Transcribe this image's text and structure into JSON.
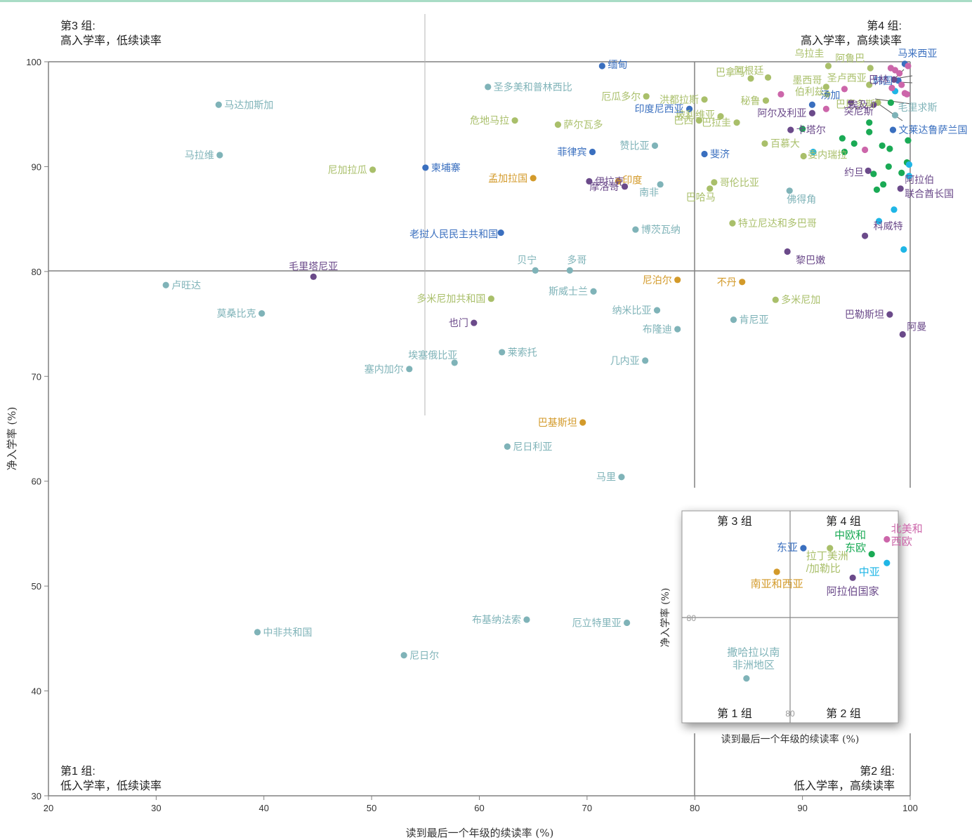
{
  "chart_data": {
    "type": "scatter",
    "xlabel": "读到最后一个年级的续读率 (%)",
    "ylabel": "净入学率 (%)",
    "xlim": [
      20,
      100
    ],
    "ylim": [
      30,
      100
    ],
    "xticks": [
      20,
      30,
      40,
      50,
      60,
      70,
      80,
      90,
      100
    ],
    "yticks": [
      30,
      40,
      50,
      60,
      70,
      80,
      90,
      100
    ],
    "quadrants": [
      {
        "group": "第3 组:",
        "desc": "高入学率，低续读率"
      },
      {
        "group": "第4 组:",
        "desc": "高入学率，高续读率"
      },
      {
        "group": "第1 组:",
        "desc": "低入学率，低续读率"
      },
      {
        "group": "第2 组:",
        "desc": "低入学率，高续读率"
      }
    ],
    "colors": {
      "SSA": "#7fb3b8",
      "LAC": "#a9bf6a",
      "EA": "#3a6fbf",
      "SWA": "#d39a2a",
      "AS": "#6b4a8a",
      "CEE": "#1aaa55",
      "CA": "#1fb6e6",
      "NAWE": "#cc66aa"
    },
    "inset": {
      "groups": [
        "第 3 组",
        "第 4 组",
        "第 1 组",
        "第 2 组"
      ],
      "tick": "80",
      "xlabel": "读到最后一个年级的续读率 (%)",
      "ylabel": "净入学率 (%)",
      "regions": [
        {
          "name": "东亚",
          "key": "EA",
          "x": 88,
          "y": 94
        },
        {
          "name": "拉丁美洲\n/加勒比",
          "key": "LAC",
          "x": 91.5,
          "y": 94
        },
        {
          "name": "中欧和\n东欧",
          "key": "CEE",
          "x": 97,
          "y": 93
        },
        {
          "name": "北美和\n西欧",
          "key": "NAWE",
          "x": 99,
          "y": 95.5
        },
        {
          "name": "中亚",
          "key": "CA",
          "x": 99,
          "y": 91.5
        },
        {
          "name": "南亚和西亚",
          "key": "SWA",
          "x": 84.5,
          "y": 90
        },
        {
          "name": "阿拉伯国家",
          "key": "AS",
          "x": 94.5,
          "y": 89
        },
        {
          "name": "撒哈拉以南\n非洲地区",
          "key": "SSA",
          "x": 80.5,
          "y": 72
        }
      ]
    },
    "points": [
      {
        "name": "马达加斯加",
        "key": "SSA",
        "x": 35.8,
        "y": 95.9
      },
      {
        "name": "马拉维",
        "key": "SSA",
        "x": 35.9,
        "y": 91.1
      },
      {
        "name": "卢旺达",
        "key": "SSA",
        "x": 30.9,
        "y": 78.7
      },
      {
        "name": "莫桑比克",
        "key": "SSA",
        "x": 39.8,
        "y": 76.0
      },
      {
        "name": "中非共和国",
        "key": "SSA",
        "x": 39.4,
        "y": 45.6
      },
      {
        "name": "尼日尔",
        "key": "SSA",
        "x": 53.0,
        "y": 43.4
      },
      {
        "name": "圣多美和普林西比",
        "key": "SSA",
        "x": 60.8,
        "y": 97.6
      },
      {
        "name": "赞比亚",
        "key": "SSA",
        "x": 76.3,
        "y": 92.0
      },
      {
        "name": "南非",
        "key": "SSA",
        "x": 76.8,
        "y": 88.3
      },
      {
        "name": "博茨瓦纳",
        "key": "SSA",
        "x": 74.5,
        "y": 84.0
      },
      {
        "name": "贝宁",
        "key": "SSA",
        "x": 65.2,
        "y": 80.1
      },
      {
        "name": "多哥",
        "key": "SSA",
        "x": 68.4,
        "y": 80.1
      },
      {
        "name": "斯威士兰",
        "key": "SSA",
        "x": 70.6,
        "y": 78.1
      },
      {
        "name": "纳米比亚",
        "key": "SSA",
        "x": 76.5,
        "y": 76.3
      },
      {
        "name": "布隆迪",
        "key": "SSA",
        "x": 78.4,
        "y": 74.5
      },
      {
        "name": "埃塞俄比亚",
        "key": "SSA",
        "x": 57.7,
        "y": 71.3
      },
      {
        "name": "塞内加尔",
        "key": "SSA",
        "x": 53.5,
        "y": 70.7
      },
      {
        "name": "莱索托",
        "key": "SSA",
        "x": 62.1,
        "y": 72.3
      },
      {
        "name": "几内亚",
        "key": "SSA",
        "x": 75.4,
        "y": 71.5
      },
      {
        "name": "尼日利亚",
        "key": "SSA",
        "x": 62.6,
        "y": 63.3
      },
      {
        "name": "马里",
        "key": "SSA",
        "x": 73.2,
        "y": 60.4
      },
      {
        "name": "布基纳法索",
        "key": "SSA",
        "x": 64.4,
        "y": 46.8
      },
      {
        "name": "厄立特里亚",
        "key": "SSA",
        "x": 73.7,
        "y": 46.5
      },
      {
        "name": "肯尼亚",
        "key": "SSA",
        "x": 83.6,
        "y": 75.4
      },
      {
        "name": "佛得角",
        "key": "SSA",
        "x": 88.8,
        "y": 87.7
      },
      {
        "name": "毛里求斯",
        "key": "SSA",
        "x": 98.6,
        "y": 94.9
      },
      {
        "name": "危地马拉",
        "key": "LAC",
        "x": 63.3,
        "y": 94.4
      },
      {
        "name": "萨尔瓦多",
        "key": "LAC",
        "x": 67.3,
        "y": 94.0
      },
      {
        "name": "尼加拉瓜",
        "key": "LAC",
        "x": 50.1,
        "y": 89.7
      },
      {
        "name": "厄瓜多尔",
        "key": "LAC",
        "x": 75.5,
        "y": 96.7
      },
      {
        "name": "洪都拉斯",
        "key": "LAC",
        "x": 80.9,
        "y": 96.4
      },
      {
        "name": "巴西",
        "key": "LAC",
        "x": 80.4,
        "y": 94.4
      },
      {
        "name": "巴拿马",
        "key": "LAC",
        "x": 85.2,
        "y": 98.4
      },
      {
        "name": "阿根廷",
        "key": "LAC",
        "x": 86.8,
        "y": 98.5
      },
      {
        "name": "乌拉圭",
        "key": "LAC",
        "x": 92.4,
        "y": 99.6
      },
      {
        "name": "阿鲁巴",
        "key": "LAC",
        "x": 96.3,
        "y": 99.4
      },
      {
        "name": "圣卢西亚",
        "key": "LAC",
        "x": 96.2,
        "y": 97.8
      },
      {
        "name": "墨西哥",
        "key": "LAC",
        "x": 92.2,
        "y": 97.6
      },
      {
        "name": "伯利兹",
        "key": "LAC",
        "x": 92.3,
        "y": 96.9
      },
      {
        "name": "秘鲁",
        "key": "LAC",
        "x": 86.6,
        "y": 96.3
      },
      {
        "name": "玻利维亚",
        "key": "LAC",
        "x": 82.4,
        "y": 94.8
      },
      {
        "name": "巴巴多斯",
        "key": "LAC",
        "x": 97.0,
        "y": 96.1
      },
      {
        "name": "巴拉圭",
        "key": "LAC",
        "x": 83.9,
        "y": 94.2
      },
      {
        "name": "百慕大",
        "key": "LAC",
        "x": 86.5,
        "y": 92.2
      },
      {
        "name": "委内瑞拉",
        "key": "LAC",
        "x": 90.1,
        "y": 91.0
      },
      {
        "name": "哥伦比亚",
        "key": "LAC",
        "x": 81.8,
        "y": 88.5
      },
      {
        "name": "巴哈马",
        "key": "LAC",
        "x": 81.4,
        "y": 87.9
      },
      {
        "name": "特立尼达和多巴哥",
        "key": "LAC",
        "x": 83.5,
        "y": 84.6
      },
      {
        "name": "多米尼加共和国",
        "key": "LAC",
        "x": 61.1,
        "y": 77.4
      },
      {
        "name": "多米尼加",
        "key": "LAC",
        "x": 87.5,
        "y": 77.3
      },
      {
        "name": "缅甸",
        "key": "EA",
        "x": 71.4,
        "y": 99.6
      },
      {
        "name": "印度尼西亚",
        "key": "EA",
        "x": 79.5,
        "y": 95.5
      },
      {
        "name": "菲律宾",
        "key": "EA",
        "x": 70.5,
        "y": 91.4
      },
      {
        "name": "柬埔寨",
        "key": "EA",
        "x": 55.0,
        "y": 89.9
      },
      {
        "name": "老挝人民民主共和国",
        "key": "EA",
        "x": 62.0,
        "y": 83.7
      },
      {
        "name": "斐济",
        "key": "EA",
        "x": 80.9,
        "y": 91.2
      },
      {
        "name": "汤加",
        "key": "EA",
        "x": 90.9,
        "y": 95.9
      },
      {
        "name": "文莱达鲁萨兰国",
        "key": "EA",
        "x": 98.4,
        "y": 93.5
      },
      {
        "name": "马来西亚",
        "key": "EA",
        "x": 99.5,
        "y": 99.8
      },
      {
        "name": "韩国",
        "key": "EA",
        "x": 98.9,
        "y": 98.2
      },
      {
        "name": "孟加拉国",
        "key": "SWA",
        "x": 65.0,
        "y": 88.9
      },
      {
        "name": "印度",
        "key": "SWA",
        "x": 72.9,
        "y": 88.6
      },
      {
        "name": "尼泊尔",
        "key": "SWA",
        "x": 78.4,
        "y": 79.2
      },
      {
        "name": "不丹",
        "key": "SWA",
        "x": 84.4,
        "y": 79.0
      },
      {
        "name": "巴基斯坦",
        "key": "SWA",
        "x": 69.6,
        "y": 65.6
      },
      {
        "name": "毛里塔尼亚",
        "key": "AS",
        "x": 44.6,
        "y": 79.5
      },
      {
        "name": "也门",
        "key": "AS",
        "x": 59.5,
        "y": 75.1
      },
      {
        "name": "伊拉克",
        "key": "AS",
        "x": 70.2,
        "y": 88.6
      },
      {
        "name": "摩洛哥",
        "key": "AS",
        "x": 73.5,
        "y": 88.1
      },
      {
        "name": "卡塔尔",
        "key": "AS",
        "x": 88.9,
        "y": 93.5
      },
      {
        "name": "阿尔及利亚",
        "key": "AS",
        "x": 90.9,
        "y": 95.1
      },
      {
        "name": "突尼斯",
        "key": "AS",
        "x": 94.5,
        "y": 96.1
      },
      {
        "name": "巴林",
        "key": "AS",
        "x": 98.5,
        "y": 98.3
      },
      {
        "name": "埃及",
        "key": "AS",
        "x": 96.6,
        "y": 95.9
      },
      {
        "name": "约旦",
        "key": "AS",
        "x": 96.1,
        "y": 89.6
      },
      {
        "name": "阿拉伯联合酋长国",
        "key": "AS",
        "x": 99.1,
        "y": 87.9
      },
      {
        "name": "科威特",
        "key": "AS",
        "x": 95.8,
        "y": 83.4
      },
      {
        "name": "黎巴嫩",
        "key": "AS",
        "x": 88.6,
        "y": 81.9
      },
      {
        "name": "巴勒斯坦",
        "key": "AS",
        "x": 98.1,
        "y": 75.9
      },
      {
        "name": "阿曼",
        "key": "AS",
        "x": 99.3,
        "y": 74.0
      },
      {
        "name": "",
        "key": "CEE",
        "x": 90.0,
        "y": 93.6
      },
      {
        "name": "",
        "key": "CEE",
        "x": 93.7,
        "y": 92.7
      },
      {
        "name": "",
        "key": "CEE",
        "x": 93.9,
        "y": 91.4
      },
      {
        "name": "",
        "key": "CEE",
        "x": 94.8,
        "y": 92.2
      },
      {
        "name": "",
        "key": "CEE",
        "x": 96.2,
        "y": 94.2
      },
      {
        "name": "",
        "key": "CEE",
        "x": 97.4,
        "y": 92.0
      },
      {
        "name": "",
        "key": "CEE",
        "x": 98.1,
        "y": 91.7
      },
      {
        "name": "",
        "key": "CEE",
        "x": 99.8,
        "y": 92.5
      },
      {
        "name": "",
        "key": "CEE",
        "x": 98.2,
        "y": 96.1
      },
      {
        "name": "",
        "key": "CEE",
        "x": 96.2,
        "y": 93.3
      },
      {
        "name": "",
        "key": "CEE",
        "x": 96.6,
        "y": 89.3
      },
      {
        "name": "",
        "key": "CEE",
        "x": 98.0,
        "y": 90.0
      },
      {
        "name": "",
        "key": "CEE",
        "x": 99.2,
        "y": 89.4
      },
      {
        "name": "",
        "key": "CEE",
        "x": 99.7,
        "y": 90.4
      },
      {
        "name": "",
        "key": "CEE",
        "x": 97.5,
        "y": 88.3
      },
      {
        "name": "",
        "key": "CEE",
        "x": 96.9,
        "y": 87.8
      },
      {
        "name": "",
        "key": "CA",
        "x": 91.0,
        "y": 91.4
      },
      {
        "name": "",
        "key": "CA",
        "x": 99.9,
        "y": 90.2
      },
      {
        "name": "",
        "key": "CA",
        "x": 99.9,
        "y": 89.1
      },
      {
        "name": "",
        "key": "CA",
        "x": 98.5,
        "y": 85.9
      },
      {
        "name": "",
        "key": "CA",
        "x": 97.1,
        "y": 84.8
      },
      {
        "name": "",
        "key": "CA",
        "x": 99.4,
        "y": 82.1
      },
      {
        "name": "",
        "key": "CA",
        "x": 98.6,
        "y": 97.2
      },
      {
        "name": "",
        "key": "NAWE",
        "x": 88.0,
        "y": 96.9
      },
      {
        "name": "",
        "key": "NAWE",
        "x": 92.2,
        "y": 95.5
      },
      {
        "name": "",
        "key": "NAWE",
        "x": 93.9,
        "y": 97.4
      },
      {
        "name": "",
        "key": "NAWE",
        "x": 95.8,
        "y": 91.6
      },
      {
        "name": "",
        "key": "NAWE",
        "x": 98.2,
        "y": 99.4
      },
      {
        "name": "",
        "key": "NAWE",
        "x": 98.6,
        "y": 99.2
      },
      {
        "name": "",
        "key": "NAWE",
        "x": 99.0,
        "y": 98.9
      },
      {
        "name": "",
        "key": "NAWE",
        "x": 99.2,
        "y": 97.8
      },
      {
        "name": "",
        "key": "NAWE",
        "x": 99.5,
        "y": 97.0
      },
      {
        "name": "",
        "key": "NAWE",
        "x": 98.3,
        "y": 97.5
      },
      {
        "name": "",
        "key": "NAWE",
        "x": 99.8,
        "y": 99.6
      },
      {
        "name": "",
        "key": "NAWE",
        "x": 99.7,
        "y": 96.9
      }
    ]
  }
}
